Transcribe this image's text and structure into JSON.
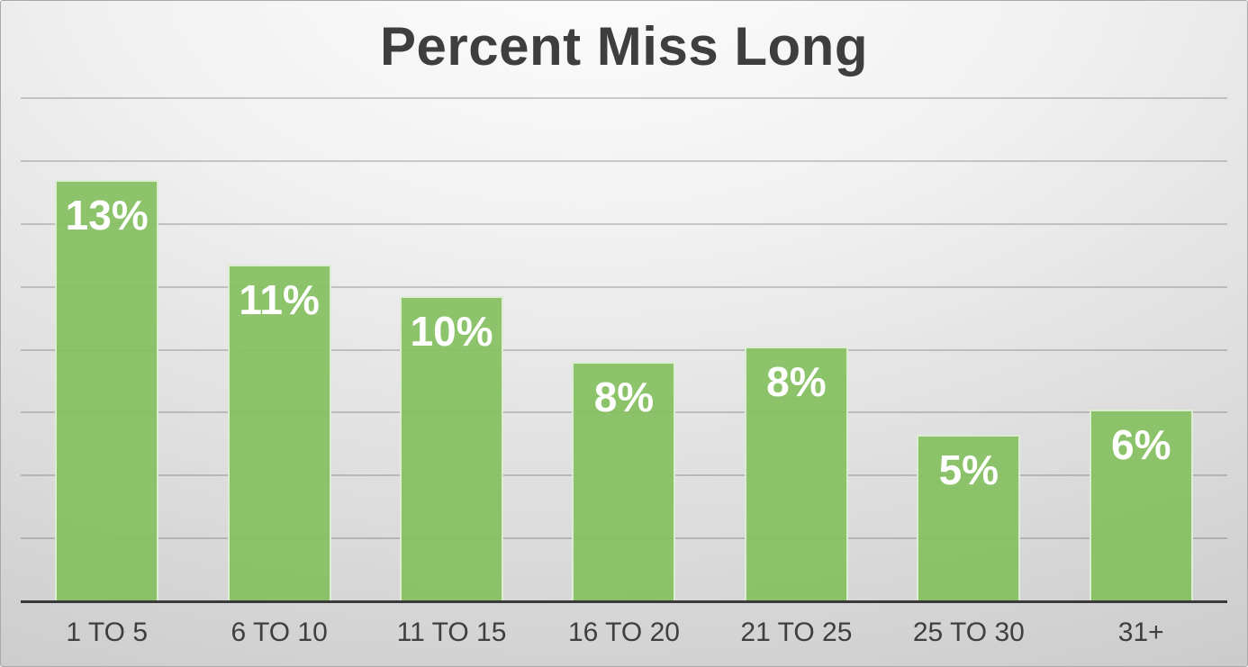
{
  "chart_data": {
    "type": "bar",
    "title": "Percent Miss Long",
    "categories": [
      "1 TO 5",
      "6 TO 10",
      "11 TO 15",
      "16 TO 20",
      "21 TO 25",
      "25 TO 30",
      "31+"
    ],
    "values": [
      13,
      11,
      10,
      8,
      8,
      5,
      6
    ],
    "value_labels": [
      "13%",
      "11%",
      "10%",
      "8%",
      "8%",
      "5%",
      "6%"
    ],
    "precise_values": [
      13.4,
      10.7,
      9.7,
      7.6,
      8.1,
      5.3,
      6.1
    ],
    "xlabel": "",
    "ylabel": "",
    "ylim": [
      0,
      16
    ],
    "gridline_step": 2,
    "grid": "horizontal",
    "y_tick_labels_visible": false,
    "legend_position": "none",
    "colors": {
      "bar_fill": "#8cc46a",
      "bar_outline": "#ffffff",
      "axis_line": "#3a3a3a",
      "gridline": "#9b9b9b",
      "title_text": "#3e3e3e",
      "category_text": "#3f3f3f",
      "value_label_text": "#ffffff",
      "background_top": "#fcfcfc",
      "background_corner": "#c2c2c2"
    }
  }
}
